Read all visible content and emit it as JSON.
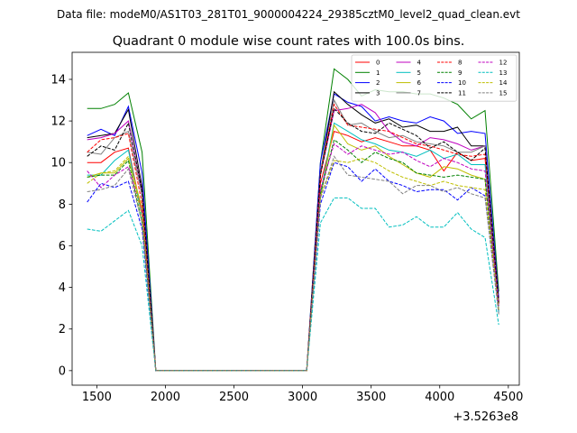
{
  "supertitle": "Data file: modeM0/AS1T03_281T01_9000004224_29385cztM0_level2_quad_clean.evt",
  "chart_data": {
    "type": "line",
    "title": "Quadrant 0 module wise count rates with 100.0s bins.",
    "xlabel": "",
    "ylabel": "",
    "x_offset_label": "+3.5263e8",
    "xlim": [
      1320,
      4580
    ],
    "ylim": [
      -0.7,
      15.3
    ],
    "xticks": [
      1500,
      2000,
      2500,
      3000,
      3500,
      4000,
      4500
    ],
    "yticks": [
      0,
      2,
      4,
      6,
      8,
      10,
      12,
      14
    ],
    "legend_position": "top-right",
    "legend_columns": 4,
    "x": [
      1430,
      1530,
      1630,
      1730,
      1830,
      1930,
      2030,
      2130,
      2230,
      2330,
      2430,
      2530,
      2630,
      2730,
      2830,
      2930,
      3030,
      3130,
      3230,
      3330,
      3430,
      3530,
      3630,
      3730,
      3830,
      3930,
      4030,
      4130,
      4230,
      4330,
      4430
    ],
    "series": [
      {
        "name": "0",
        "color": "#ff0000",
        "dash": "solid",
        "values": [
          10.0,
          10.0,
          10.5,
          10.7,
          7.5,
          0,
          0,
          0,
          0,
          0,
          0,
          0,
          0,
          0,
          0,
          0,
          0,
          9.0,
          11.5,
          11.3,
          11.0,
          11.2,
          11.0,
          10.8,
          10.8,
          10.6,
          9.6,
          10.5,
          10.1,
          10.2,
          3.2
        ]
      },
      {
        "name": "1",
        "color": "#008000",
        "dash": "solid",
        "values": [
          12.6,
          12.6,
          12.8,
          13.35,
          10.5,
          0,
          0,
          0,
          0,
          0,
          0,
          0,
          0,
          0,
          0,
          0,
          0,
          10.0,
          14.5,
          14.0,
          13.2,
          13.5,
          13.4,
          13.4,
          13.3,
          13.3,
          13.1,
          12.8,
          12.1,
          12.5,
          3.8
        ]
      },
      {
        "name": "2",
        "color": "#0000ff",
        "dash": "solid",
        "values": [
          11.3,
          11.6,
          11.3,
          12.7,
          9.5,
          0,
          0,
          0,
          0,
          0,
          0,
          0,
          0,
          0,
          0,
          0,
          0,
          10.0,
          13.3,
          12.9,
          12.7,
          12.0,
          12.2,
          12.0,
          11.9,
          12.2,
          12.0,
          11.4,
          11.5,
          11.4,
          3.5
        ]
      },
      {
        "name": "3",
        "color": "#000000",
        "dash": "solid",
        "values": [
          11.2,
          11.3,
          11.4,
          12.55,
          8.8,
          0,
          0,
          0,
          0,
          0,
          0,
          0,
          0,
          0,
          0,
          0,
          0,
          9.5,
          13.4,
          12.8,
          12.3,
          11.9,
          12.1,
          11.7,
          11.8,
          11.5,
          11.5,
          11.7,
          10.8,
          10.8,
          3.3
        ]
      },
      {
        "name": "4",
        "color": "#bf00bf",
        "dash": "solid",
        "values": [
          11.1,
          11.2,
          11.4,
          12.0,
          8.6,
          0,
          0,
          0,
          0,
          0,
          0,
          0,
          0,
          0,
          0,
          0,
          0,
          9.4,
          12.5,
          12.6,
          12.8,
          12.4,
          11.5,
          11.0,
          10.8,
          11.2,
          11.1,
          10.9,
          10.6,
          10.8,
          3.2
        ]
      },
      {
        "name": "5",
        "color": "#00bfbf",
        "dash": "solid",
        "values": [
          9.4,
          9.4,
          10.1,
          10.6,
          7.4,
          0,
          0,
          0,
          0,
          0,
          0,
          0,
          0,
          0,
          0,
          0,
          0,
          8.5,
          11.9,
          11.5,
          11.1,
          10.9,
          10.6,
          10.5,
          10.3,
          10.6,
          10.2,
          10.4,
          9.9,
          9.9,
          2.8
        ]
      },
      {
        "name": "6",
        "color": "#bfbf00",
        "dash": "solid",
        "values": [
          9.3,
          9.5,
          9.5,
          10.2,
          7.8,
          0,
          0,
          0,
          0,
          0,
          0,
          0,
          0,
          0,
          0,
          0,
          0,
          8.3,
          11.8,
          10.9,
          10.6,
          10.8,
          10.3,
          9.9,
          9.5,
          9.3,
          9.8,
          9.7,
          9.4,
          9.2,
          3.1
        ]
      },
      {
        "name": "7",
        "color": "#808080",
        "dash": "solid",
        "values": [
          10.5,
          10.4,
          11.2,
          11.5,
          8.4,
          0,
          0,
          0,
          0,
          0,
          0,
          0,
          0,
          0,
          0,
          0,
          0,
          9.5,
          13.0,
          11.8,
          11.9,
          11.5,
          11.2,
          11.3,
          11.0,
          10.9,
          10.8,
          10.5,
          10.5,
          10.8,
          3.1
        ]
      },
      {
        "name": "8",
        "color": "#ff0000",
        "dash": "dashed",
        "values": [
          10.5,
          11.1,
          11.2,
          11.4,
          8.0,
          0,
          0,
          0,
          0,
          0,
          0,
          0,
          0,
          0,
          0,
          0,
          0,
          9.4,
          12.8,
          11.8,
          11.7,
          11.6,
          11.5,
          11.2,
          10.9,
          10.8,
          10.6,
          10.4,
          10.3,
          10.4,
          3.3
        ]
      },
      {
        "name": "9",
        "color": "#008000",
        "dash": "dashed",
        "values": [
          9.3,
          9.4,
          9.4,
          10.1,
          7.1,
          0,
          0,
          0,
          0,
          0,
          0,
          0,
          0,
          0,
          0,
          0,
          0,
          8.5,
          11.1,
          10.6,
          10.0,
          10.5,
          10.2,
          10.0,
          9.5,
          9.4,
          9.3,
          9.4,
          9.3,
          9.2,
          2.9
        ]
      },
      {
        "name": "10",
        "color": "#0000ff",
        "dash": "dashed",
        "values": [
          8.1,
          9.0,
          8.8,
          9.1,
          6.8,
          0,
          0,
          0,
          0,
          0,
          0,
          0,
          0,
          0,
          0,
          0,
          0,
          8.0,
          10.0,
          9.8,
          9.1,
          9.7,
          9.1,
          8.9,
          8.6,
          8.7,
          8.7,
          8.2,
          8.8,
          8.4,
          2.8
        ]
      },
      {
        "name": "11",
        "color": "#000000",
        "dash": "dashed",
        "values": [
          10.3,
          10.8,
          10.6,
          11.9,
          8.6,
          0,
          0,
          0,
          0,
          0,
          0,
          0,
          0,
          0,
          0,
          0,
          0,
          9.4,
          12.6,
          11.9,
          11.5,
          11.4,
          11.9,
          11.6,
          11.3,
          10.7,
          11.0,
          10.5,
          10.1,
          10.7,
          3.2
        ]
      },
      {
        "name": "12",
        "color": "#bf00bf",
        "dash": "dashed",
        "values": [
          9.6,
          8.8,
          9.4,
          9.8,
          7.6,
          0,
          0,
          0,
          0,
          0,
          0,
          0,
          0,
          0,
          0,
          0,
          0,
          8.7,
          10.9,
          10.4,
          10.8,
          10.6,
          10.4,
          10.5,
          10.1,
          9.8,
          10.2,
          10.0,
          9.7,
          9.6,
          3.0
        ]
      },
      {
        "name": "13",
        "color": "#00bfbf",
        "dash": "dashed",
        "values": [
          6.8,
          6.7,
          7.2,
          7.7,
          6.0,
          0,
          0,
          0,
          0,
          0,
          0,
          0,
          0,
          0,
          0,
          0,
          0,
          7.1,
          8.3,
          8.3,
          7.8,
          7.8,
          6.9,
          7.0,
          7.4,
          6.9,
          6.9,
          7.6,
          6.8,
          6.4,
          2.2
        ]
      },
      {
        "name": "14",
        "color": "#bfbf00",
        "dash": "dashed",
        "values": [
          9.0,
          9.5,
          9.6,
          10.3,
          7.4,
          0,
          0,
          0,
          0,
          0,
          0,
          0,
          0,
          0,
          0,
          0,
          0,
          8.3,
          10.1,
          10.0,
          10.2,
          10.0,
          9.6,
          9.3,
          9.1,
          8.9,
          9.1,
          8.9,
          8.8,
          8.7,
          2.9
        ]
      },
      {
        "name": "15",
        "color": "#808080",
        "dash": "dashed",
        "values": [
          8.6,
          8.7,
          8.9,
          9.7,
          7.1,
          0,
          0,
          0,
          0,
          0,
          0,
          0,
          0,
          0,
          0,
          0,
          0,
          8.3,
          10.3,
          9.4,
          9.3,
          9.2,
          9.1,
          8.5,
          8.9,
          8.9,
          8.6,
          8.8,
          8.5,
          8.3,
          2.7
        ]
      }
    ]
  }
}
